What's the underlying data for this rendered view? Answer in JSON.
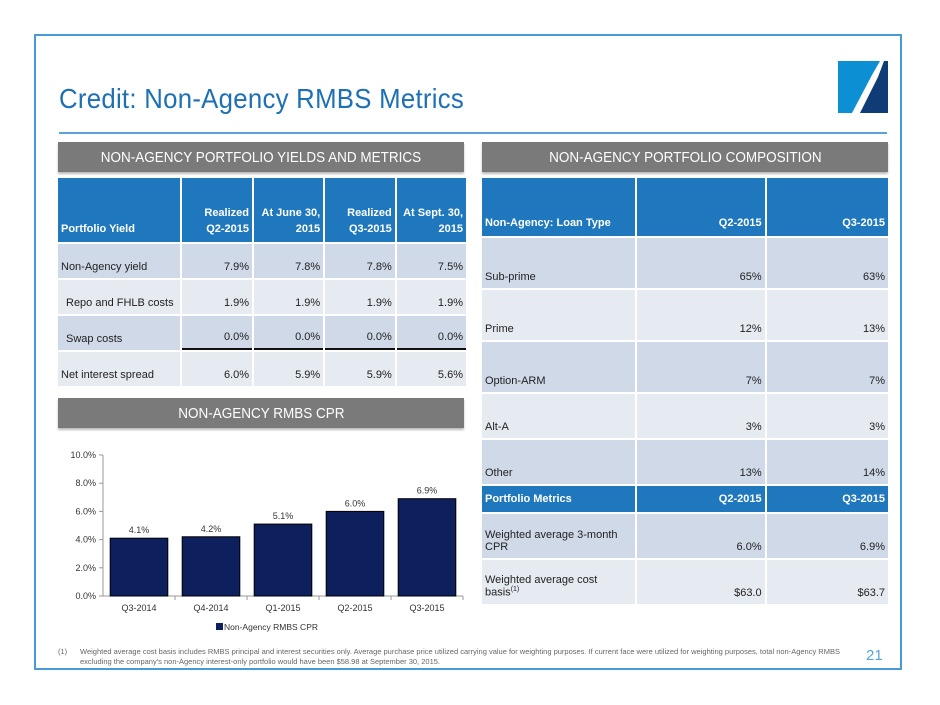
{
  "slide": {
    "title": "Credit: Non-Agency RMBS Metrics",
    "page_number": "21",
    "colors": {
      "accent": "#1f6fb5",
      "table_header": "#1f78bd",
      "section_header": "#7a7a7a",
      "bar": "#0d1f5c",
      "row_dark": "#cfd9e8",
      "row_light": "#e6eaf1"
    }
  },
  "yields": {
    "section_title": "NON-AGENCY PORTFOLIO YIELDS AND METRICS",
    "headers": [
      "Portfolio Yield",
      "Realized Q2-2015",
      "At June 30, 2015",
      "Realized Q3-2015",
      "At Sept. 30, 2015"
    ],
    "rows": [
      {
        "label": "Non-Agency yield",
        "values": [
          "7.9%",
          "7.8%",
          "7.8%",
          "7.5%"
        ]
      },
      {
        "label": "Repo and FHLB costs",
        "values": [
          "1.9%",
          "1.9%",
          "1.9%",
          "1.9%"
        ]
      },
      {
        "label": "Swap costs",
        "values": [
          "0.0%",
          "0.0%",
          "0.0%",
          "0.0%"
        ]
      },
      {
        "label": "Net interest spread",
        "values": [
          "6.0%",
          "5.9%",
          "5.9%",
          "5.6%"
        ]
      }
    ]
  },
  "composition": {
    "section_title": "NON-AGENCY PORTFOLIO COMPOSITION",
    "headers": [
      "Non-Agency: Loan Type",
      "Q2-2015",
      "Q3-2015"
    ],
    "rows": [
      {
        "label": "Sub-prime",
        "values": [
          "65%",
          "63%"
        ]
      },
      {
        "label": "Prime",
        "values": [
          "12%",
          "13%"
        ]
      },
      {
        "label": "Option-ARM",
        "values": [
          "7%",
          "7%"
        ]
      },
      {
        "label": "Alt-A",
        "values": [
          "3%",
          "3%"
        ]
      },
      {
        "label": "Other",
        "values": [
          "13%",
          "14%"
        ]
      }
    ],
    "metrics_headers": [
      "Portfolio Metrics",
      "Q2-2015",
      "Q3-2015"
    ],
    "metrics_rows": [
      {
        "label": "Weighted average 3-month CPR",
        "sup": "",
        "values": [
          "6.0%",
          "6.9%"
        ]
      },
      {
        "label": "Weighted average cost basis",
        "sup": "(1)",
        "values": [
          "$63.0",
          "$63.7"
        ]
      }
    ]
  },
  "cpr": {
    "section_title": "NON-AGENCY RMBS CPR"
  },
  "chart_data": {
    "type": "bar",
    "title": "NON-AGENCY RMBS CPR",
    "categories": [
      "Q3-2014",
      "Q4-2014",
      "Q1-2015",
      "Q2-2015",
      "Q3-2015"
    ],
    "series": [
      {
        "name": "Non-Agency RMBS CPR",
        "values": [
          4.1,
          4.2,
          5.1,
          6.0,
          6.9
        ]
      }
    ],
    "data_labels": [
      "4.1%",
      "4.2%",
      "5.1%",
      "6.0%",
      "6.9%"
    ],
    "yticks": [
      "0.0%",
      "2.0%",
      "4.0%",
      "6.0%",
      "8.0%",
      "10.0%"
    ],
    "ylim": [
      0,
      10
    ],
    "xlabel": "",
    "ylabel": "",
    "grid": false,
    "legend": "bottom-center"
  },
  "footnote": {
    "number": "(1)",
    "text": "Weighted average cost basis includes RMBS principal and interest securities only.  Average purchase price utilized carrying value for weighting purposes.  If current face were utilized for weighting purposes, total non-Agency RMBS excluding the company's non-Agency interest-only portfolio would have been $58.98 at September 30, 2015."
  }
}
